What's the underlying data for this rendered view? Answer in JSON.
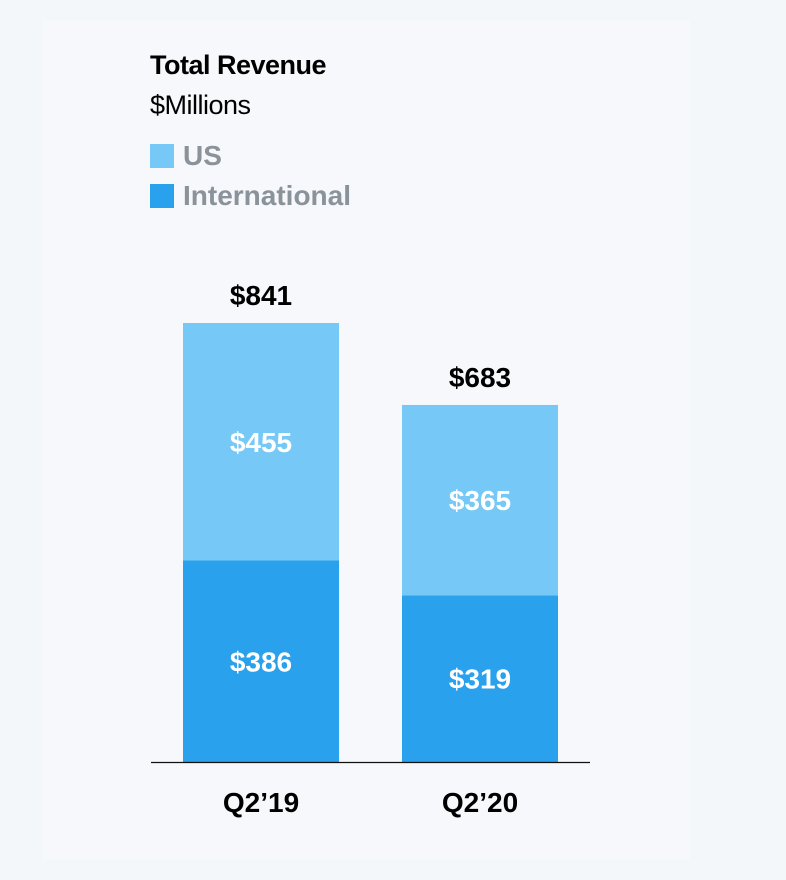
{
  "chart_data": {
    "type": "bar",
    "stacked": true,
    "title": "Total Revenue",
    "subtitle": "$Millions",
    "categories": [
      "Q2’19",
      "Q2’20"
    ],
    "series": [
      {
        "name": "International",
        "color": "#2aa1ec",
        "values": [
          386,
          319
        ],
        "labels": [
          "$386",
          "$319"
        ]
      },
      {
        "name": "US",
        "color": "#76c9f6",
        "values": [
          455,
          365
        ],
        "labels": [
          "$455",
          "$365"
        ]
      }
    ],
    "totals": [
      841,
      683
    ],
    "total_labels": [
      "$841",
      "$683"
    ],
    "legend": {
      "placement": "top-left",
      "entries": [
        "US",
        "International"
      ]
    },
    "ylim": [
      0,
      841
    ],
    "grid": false
  }
}
